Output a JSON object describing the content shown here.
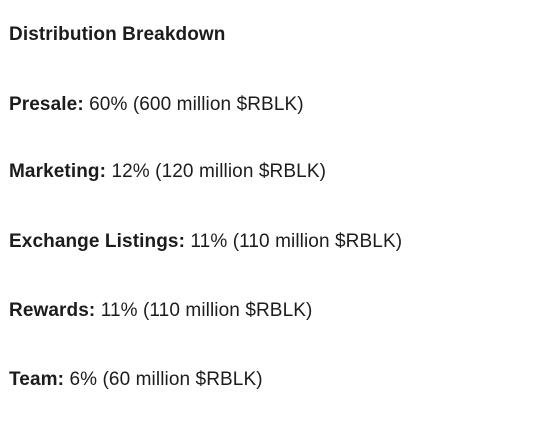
{
  "heading": "Distribution Breakdown",
  "items": [
    {
      "label": "Presale:",
      "value": " 60% (600 million $RBLK)"
    },
    {
      "label": "Marketing:",
      "value": " 12% (120 million $RBLK)"
    },
    {
      "label": "Exchange Listings:",
      "value": " 11% (110 million $RBLK)"
    },
    {
      "label": "Rewards:",
      "value": " 11% (110 million $RBLK)"
    },
    {
      "label": "Team:",
      "value": " 6% (60 million $RBLK)"
    }
  ]
}
